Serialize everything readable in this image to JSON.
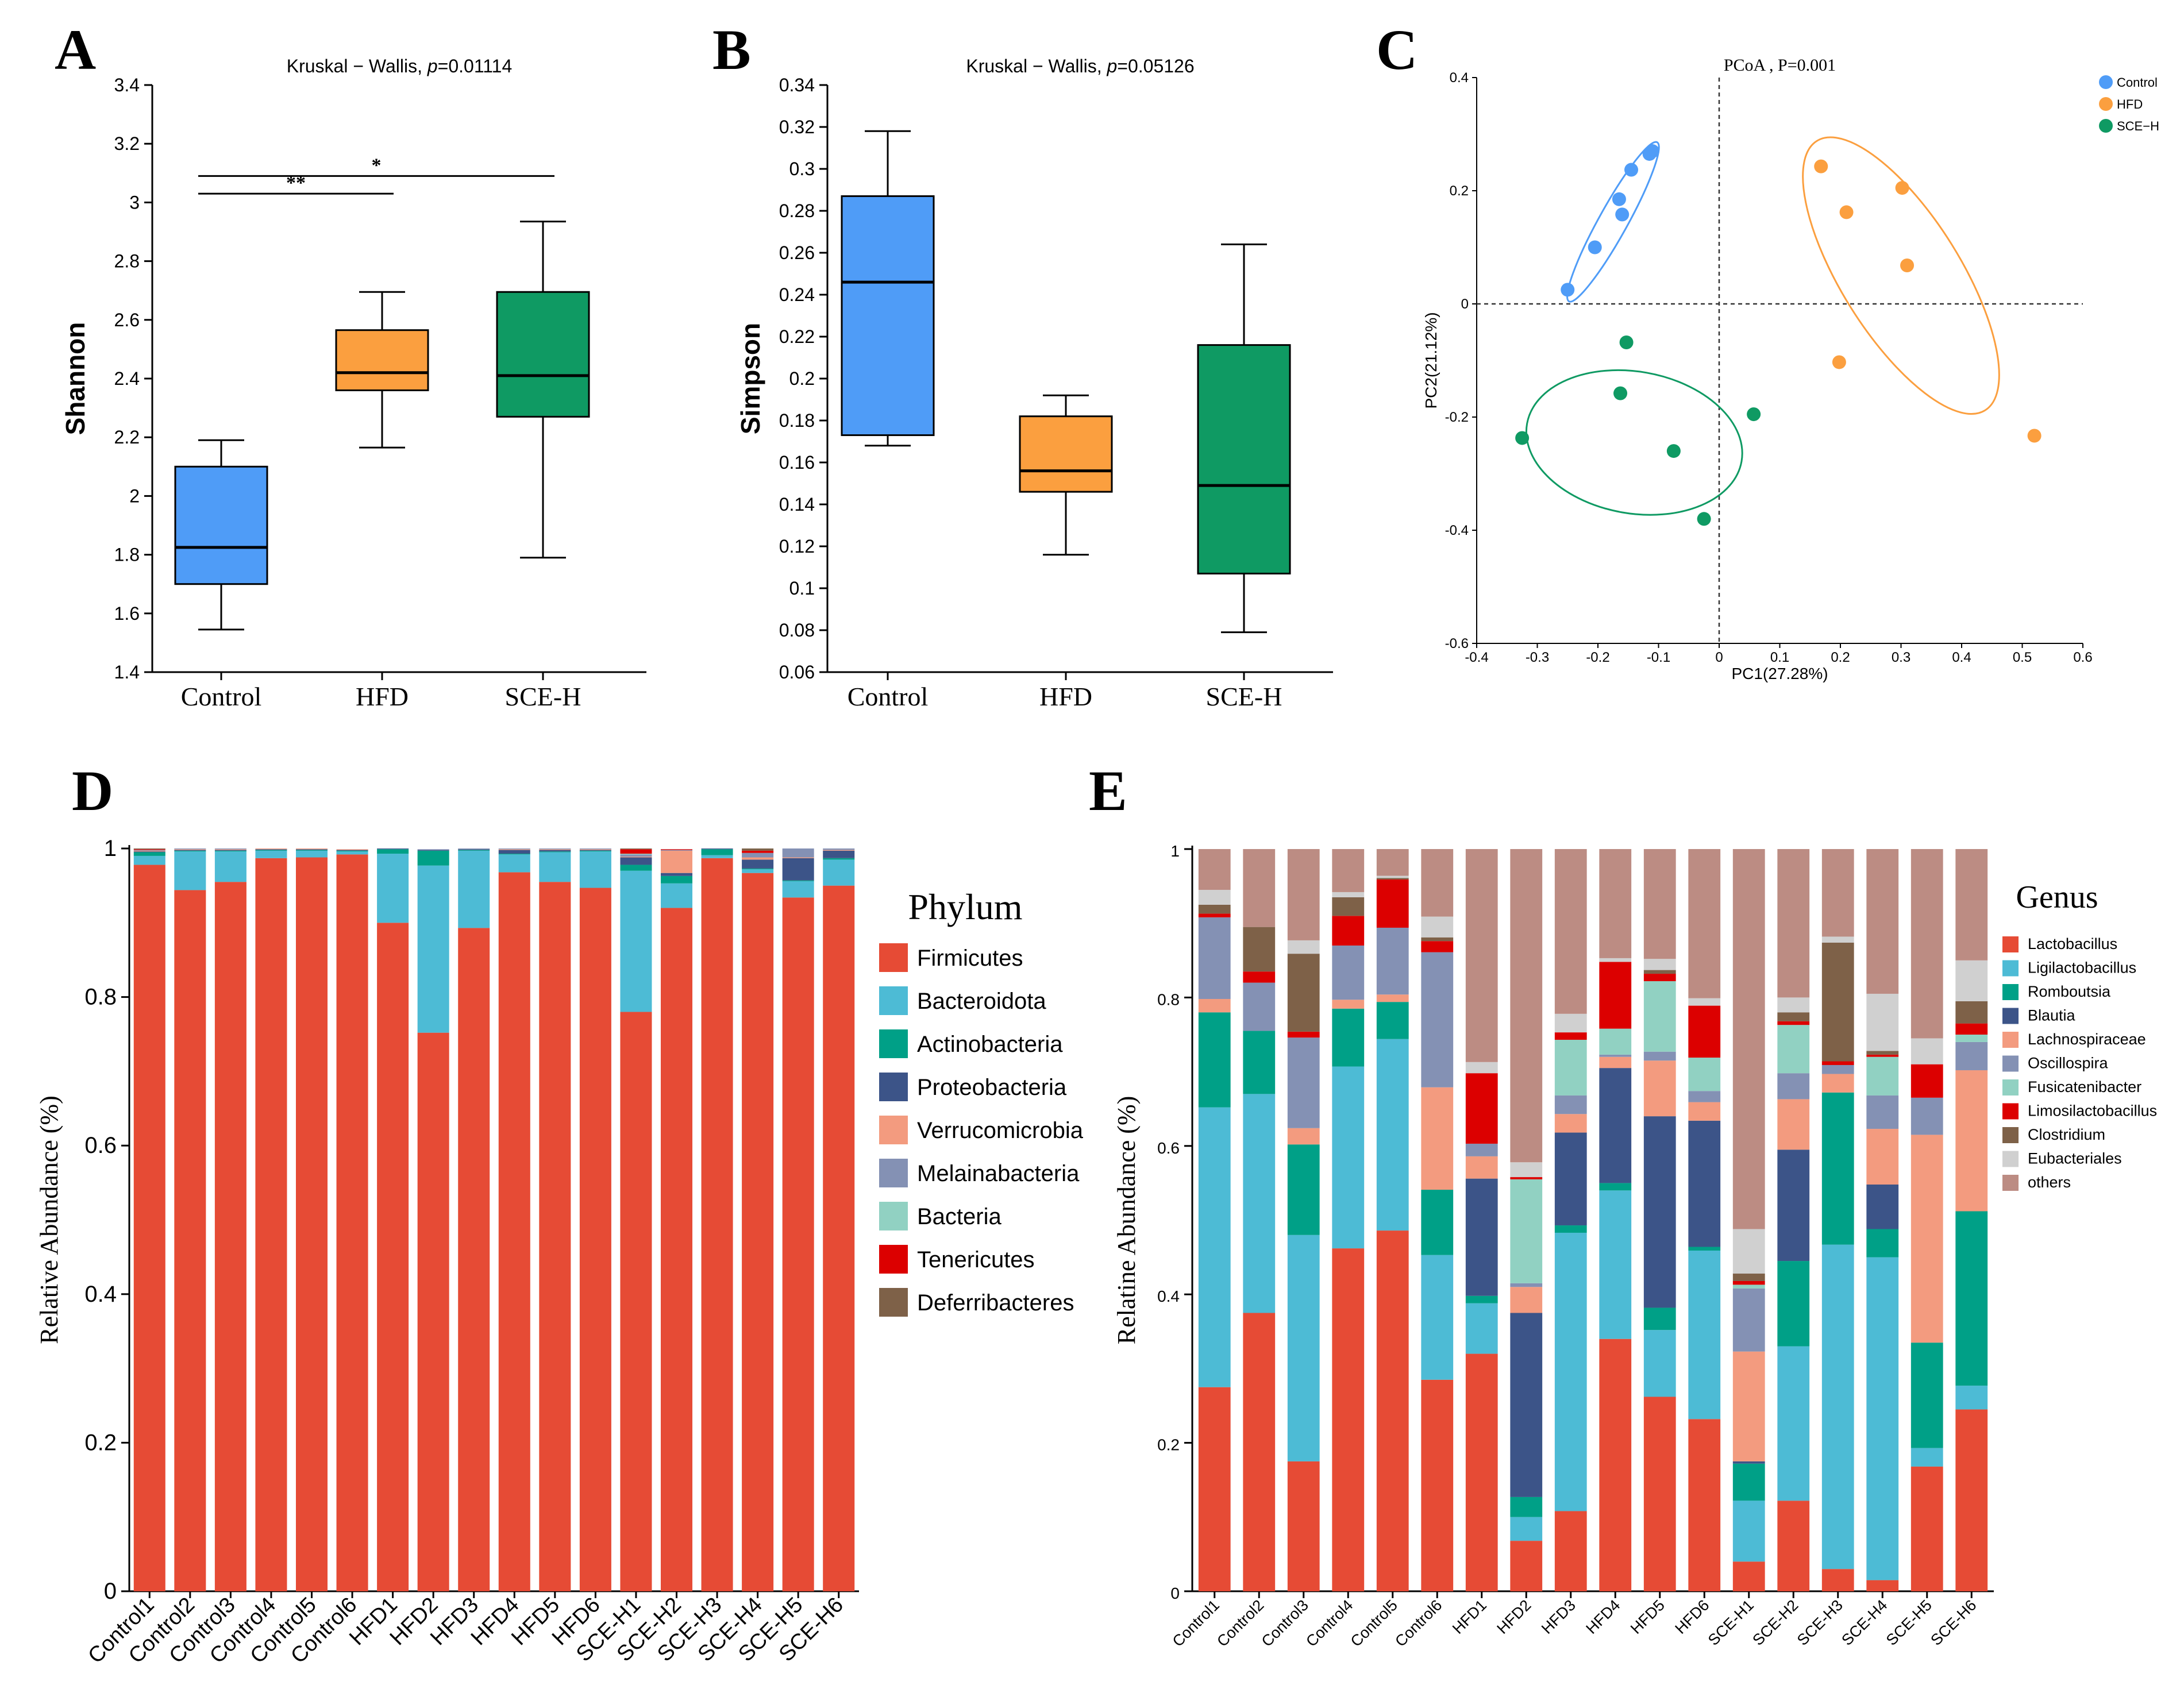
{
  "panel_labels": [
    "A",
    "B",
    "C",
    "D",
    "E"
  ],
  "colors": {
    "control": "#4f9cf7",
    "hfd": "#fb9f3f",
    "sce": "#0f9a63",
    "axis": "#000000"
  },
  "chart_data": [
    {
      "id": "A",
      "type": "box",
      "title_prefix": "Kruskal − Wallis, ",
      "title_p": "p",
      "title_suffix": "=0.01114",
      "ylabel": "Shannon",
      "ylim": [
        1.4,
        3.4
      ],
      "yticks": [
        1.4,
        1.6,
        1.8,
        2,
        2.2,
        2.4,
        2.6,
        2.8,
        3,
        3.2,
        3.4
      ],
      "tick_labels": [
        "1.4",
        "1.6",
        "1.8",
        "2",
        "2.2",
        "2.4",
        "2.6",
        "2.8",
        "3",
        "3.2",
        "3.4"
      ],
      "categories": [
        "Control",
        "HFD",
        "SCE-H"
      ],
      "boxes": [
        {
          "min": 1.545,
          "q1": 1.7,
          "median": 1.825,
          "q3": 2.1,
          "max": 2.19
        },
        {
          "min": 2.165,
          "q1": 2.36,
          "median": 2.42,
          "q3": 2.565,
          "max": 2.695
        },
        {
          "min": 1.79,
          "q1": 2.27,
          "median": 2.41,
          "q3": 2.695,
          "max": 2.935
        }
      ],
      "significance": [
        {
          "from": 0,
          "to": 1,
          "y": 3.03,
          "label": "**"
        },
        {
          "from": 0,
          "to": 2,
          "y": 3.09,
          "label": "*"
        }
      ]
    },
    {
      "id": "B",
      "type": "box",
      "title_prefix": "Kruskal − Wallis, ",
      "title_p": "p",
      "title_suffix": "=0.05126",
      "ylabel": "Simpson",
      "ylim": [
        0.06,
        0.34
      ],
      "yticks": [
        0.06,
        0.08,
        0.1,
        0.12,
        0.14,
        0.16,
        0.18,
        0.2,
        0.22,
        0.24,
        0.26,
        0.28,
        0.3,
        0.32,
        0.34
      ],
      "tick_labels": [
        "0.06",
        "0.08",
        "0.1",
        "0.12",
        "0.14",
        "0.16",
        "0.18",
        "0.2",
        "0.22",
        "0.24",
        "0.26",
        "0.28",
        "0.3",
        "0.32",
        "0.34"
      ],
      "categories": [
        "Control",
        "HFD",
        "SCE-H"
      ],
      "boxes": [
        {
          "min": 0.168,
          "q1": 0.173,
          "median": 0.246,
          "q3": 0.287,
          "max": 0.318
        },
        {
          "min": 0.116,
          "q1": 0.146,
          "median": 0.156,
          "q3": 0.182,
          "max": 0.192
        },
        {
          "min": 0.079,
          "q1": 0.107,
          "median": 0.149,
          "q3": 0.216,
          "max": 0.264
        }
      ]
    },
    {
      "id": "C",
      "type": "scatter",
      "title": "PCoA , P=0.001",
      "xlabel": "PC1(27.28%)",
      "ylabel": "PC2(21.12%)",
      "xlim": [
        -0.4,
        0.6
      ],
      "ylim": [
        -0.6,
        0.4
      ],
      "xticks": [
        -0.4,
        -0.3,
        -0.2,
        -0.1,
        0,
        0.1,
        0.2,
        0.3,
        0.4,
        0.5,
        0.6
      ],
      "yticks": [
        -0.6,
        -0.4,
        -0.2,
        0,
        0.2,
        0.4
      ],
      "xtick_labels": [
        "-0.4",
        "-0.3",
        "-0.2",
        "-0.1",
        "0",
        "0.1",
        "0.2",
        "0.3",
        "0.4",
        "0.5",
        "0.6"
      ],
      "ytick_labels": [
        "-0.6",
        "-0.4",
        "-0.2",
        "0",
        "0.2",
        "0.4"
      ],
      "series": [
        {
          "name": "Control",
          "points": [
            [
              -0.25,
              0.025
            ],
            [
              -0.205,
              0.1
            ],
            [
              -0.165,
              0.185
            ],
            [
              -0.16,
              0.158
            ],
            [
              -0.145,
              0.237
            ],
            [
              -0.11,
              0.27
            ],
            [
              -0.115,
              0.265
            ]
          ],
          "ellipse": {
            "cx": -0.175,
            "cy": 0.145,
            "rx": 0.158,
            "ry": 0.024,
            "angle_deg": 61
          }
        },
        {
          "name": "HFD",
          "points": [
            [
              0.168,
              0.243
            ],
            [
              0.21,
              0.162
            ],
            [
              0.302,
              0.205
            ],
            [
              0.31,
              0.068
            ],
            [
              0.198,
              -0.103
            ],
            [
              0.52,
              -0.233
            ]
          ],
          "ellipse": {
            "cx": 0.3,
            "cy": 0.05,
            "rx": 0.275,
            "ry": 0.1,
            "angle_deg": -58
          }
        },
        {
          "name": "SCE−H",
          "points": [
            [
              -0.153,
              -0.068
            ],
            [
              -0.163,
              -0.158
            ],
            [
              -0.325,
              -0.237
            ],
            [
              -0.075,
              -0.26
            ],
            [
              0.057,
              -0.195
            ],
            [
              -0.025,
              -0.38
            ]
          ],
          "ellipse": {
            "cx": -0.14,
            "cy": -0.245,
            "rx": 0.18,
            "ry": 0.125,
            "angle_deg": -10
          }
        }
      ]
    },
    {
      "id": "D",
      "type": "stacked-bar",
      "title": "Phylum",
      "ylabel": "Relative Abundance (%)",
      "ylim": [
        0,
        1
      ],
      "yticks": [
        0,
        0.2,
        0.4,
        0.6,
        0.8,
        1
      ],
      "tick_labels": [
        "0",
        "0.2",
        "0.4",
        "0.6",
        "0.8",
        "1"
      ],
      "categories": [
        "Control1",
        "Control2",
        "Control3",
        "Control4",
        "Control5",
        "Control6",
        "HFD1",
        "HFD2",
        "HFD3",
        "HFD4",
        "HFD5",
        "HFD6",
        "SCE-H1",
        "SCE-H2",
        "SCE-H3",
        "SCE-H4",
        "SCE-H5",
        "SCE-H6"
      ],
      "legend_title": "Phylum",
      "series": [
        {
          "name": "Firmicutes",
          "color": "#e64b35",
          "values": [
            0.978,
            0.944,
            0.955,
            0.987,
            0.988,
            0.992,
            0.9,
            0.752,
            0.893,
            0.968,
            0.955,
            0.947,
            0.78,
            0.92,
            0.987,
            0.967,
            0.934,
            0.95
          ]
        },
        {
          "name": "Bacteroidota",
          "color": "#4dbbd5",
          "values": [
            0.012,
            0.052,
            0.041,
            0.01,
            0.009,
            0.004,
            0.093,
            0.225,
            0.104,
            0.024,
            0.04,
            0.049,
            0.19,
            0.033,
            0.004,
            0.005,
            0.022,
            0.035
          ]
        },
        {
          "name": "Actinobacteria",
          "color": "#00a087",
          "values": [
            0.005,
            0.001,
            0.001,
            0.001,
            0.001,
            0.001,
            0.006,
            0.02,
            0.001,
            0.001,
            0.001,
            0.001,
            0.008,
            0.01,
            0.008,
            0.001,
            0.001,
            0.002
          ]
        },
        {
          "name": "Proteobacteria",
          "color": "#3c5488",
          "values": [
            0.001,
            0.001,
            0.001,
            0.001,
            0.001,
            0.001,
            0.001,
            0.001,
            0.001,
            0.005,
            0.002,
            0.001,
            0.01,
            0.004,
            0.001,
            0.012,
            0.03,
            0.01
          ]
        },
        {
          "name": "Verrucomicrobia",
          "color": "#f39b7f",
          "values": [
            0.001,
            0.001,
            0.001,
            0.001,
            0.001,
            0.001,
            0,
            0,
            0,
            0.001,
            0.001,
            0.001,
            0.001,
            0.03,
            0,
            0.003,
            0.001,
            0.001
          ]
        },
        {
          "name": "Melainabacteria",
          "color": "#8491b4",
          "values": [
            0.001,
            0.001,
            0.001,
            0,
            0,
            0,
            0,
            0.001,
            0.001,
            0.001,
            0.001,
            0.001,
            0.003,
            0.001,
            0,
            0.006,
            0.012,
            0.002
          ]
        },
        {
          "name": "Bacteria",
          "color": "#91d1c2",
          "values": [
            0,
            0,
            0,
            0,
            0,
            0,
            0,
            0,
            0,
            0,
            0,
            0,
            0.001,
            0,
            0,
            0,
            0,
            0
          ]
        },
        {
          "name": "Tenericutes",
          "color": "#dc0000",
          "values": [
            0.001,
            0,
            0,
            0,
            0,
            0,
            0,
            0,
            0,
            0,
            0,
            0,
            0.006,
            0.001,
            0,
            0.003,
            0,
            0
          ]
        },
        {
          "name": "Deferribacteres",
          "color": "#7e6148",
          "values": [
            0.001,
            0,
            0,
            0,
            0,
            0,
            0,
            0,
            0,
            0,
            0,
            0,
            0.001,
            0,
            0,
            0.003,
            0,
            0
          ]
        }
      ]
    },
    {
      "id": "E",
      "type": "stacked-bar",
      "title": "Genus",
      "ylabel": "Relatine Abundance (%)",
      "ylim": [
        0,
        1
      ],
      "yticks": [
        0,
        0.2,
        0.4,
        0.6,
        0.8,
        1
      ],
      "tick_labels": [
        "0",
        "0.2",
        "0.4",
        "0.6",
        "0.8",
        "1"
      ],
      "categories": [
        "Control1",
        "Control2",
        "Control3",
        "Control4",
        "Control5",
        "Control6",
        "HFD1",
        "HFD2",
        "HFD3",
        "HFD4",
        "HFD5",
        "HFD6",
        "SCE-H1",
        "SCE-H2",
        "SCE-H3",
        "SCE-H4",
        "SCE-H5",
        "SCE-H6"
      ],
      "legend_title": "Genus",
      "series": [
        {
          "name": "Lactobacillus",
          "color": "#e64b35",
          "values": [
            0.275,
            0.375,
            0.175,
            0.462,
            0.486,
            0.285,
            0.32,
            0.068,
            0.108,
            0.34,
            0.262,
            0.232,
            0.04,
            0.122,
            0.03,
            0.015,
            0.168,
            0.245
          ]
        },
        {
          "name": "Ligilactobacillus",
          "color": "#4dbbd5",
          "values": [
            0.377,
            0.295,
            0.305,
            0.245,
            0.258,
            0.168,
            0.068,
            0.032,
            0.375,
            0.2,
            0.09,
            0.227,
            0.082,
            0.208,
            0.437,
            0.435,
            0.025,
            0.032
          ]
        },
        {
          "name": "Romboutsia",
          "color": "#00a087",
          "values": [
            0.128,
            0.085,
            0.122,
            0.078,
            0.05,
            0.088,
            0.01,
            0.027,
            0.01,
            0.01,
            0.03,
            0.005,
            0.05,
            0.115,
            0.205,
            0.038,
            0.142,
            0.235
          ]
        },
        {
          "name": "Blautia",
          "color": "#3c5488",
          "values": [
            0,
            0,
            0,
            0,
            0,
            0,
            0.158,
            0.248,
            0.125,
            0.155,
            0.258,
            0.17,
            0.003,
            0.15,
            0,
            0.06,
            0,
            0
          ]
        },
        {
          "name": "Lachnospiraceae",
          "color": "#f39b7f",
          "values": [
            0.018,
            0,
            0.022,
            0.012,
            0.01,
            0.138,
            0.03,
            0.035,
            0.025,
            0.015,
            0.075,
            0.025,
            0.148,
            0.068,
            0.025,
            0.075,
            0.28,
            0.19
          ]
        },
        {
          "name": "Oscillospira",
          "color": "#8491b4",
          "values": [
            0.11,
            0.065,
            0.122,
            0.073,
            0.09,
            0.182,
            0.017,
            0.005,
            0.025,
            0.003,
            0.012,
            0.015,
            0.085,
            0.035,
            0.012,
            0.045,
            0.05,
            0.038
          ]
        },
        {
          "name": "Fusicatenibacter",
          "color": "#91d1c2",
          "values": [
            0,
            0,
            0,
            0,
            0,
            0,
            0,
            0.14,
            0.075,
            0.035,
            0.095,
            0.045,
            0.005,
            0.065,
            0,
            0.052,
            0,
            0.01
          ]
        },
        {
          "name": "Limosilactobacillus",
          "color": "#dc0000",
          "values": [
            0.005,
            0.015,
            0.008,
            0.04,
            0.065,
            0.015,
            0.095,
            0.003,
            0.01,
            0.09,
            0.01,
            0.07,
            0.005,
            0.005,
            0.005,
            0.003,
            0.045,
            0.015
          ]
        },
        {
          "name": "Clostridium",
          "color": "#7e6148",
          "values": [
            0.012,
            0.06,
            0.105,
            0.025,
            0.002,
            0.005,
            0,
            0,
            0,
            0,
            0.005,
            0,
            0.01,
            0.012,
            0.16,
            0.005,
            0,
            0.03
          ]
        },
        {
          "name": "Eubacteriales",
          "color": "#d0d0d0",
          "values": [
            0.02,
            0,
            0.018,
            0.007,
            0.003,
            0.028,
            0.015,
            0.02,
            0.025,
            0.005,
            0.015,
            0.01,
            0.06,
            0.02,
            0.008,
            0.077,
            0.035,
            0.055
          ]
        },
        {
          "name": "others",
          "color": "#bc8c83",
          "values": [
            0.055,
            0.105,
            0.123,
            0.058,
            0.036,
            0.091,
            0.287,
            0.422,
            0.222,
            0.147,
            0.148,
            0.201,
            0.512,
            0.2,
            0.118,
            0.195,
            0.255,
            0.15
          ]
        }
      ]
    }
  ]
}
